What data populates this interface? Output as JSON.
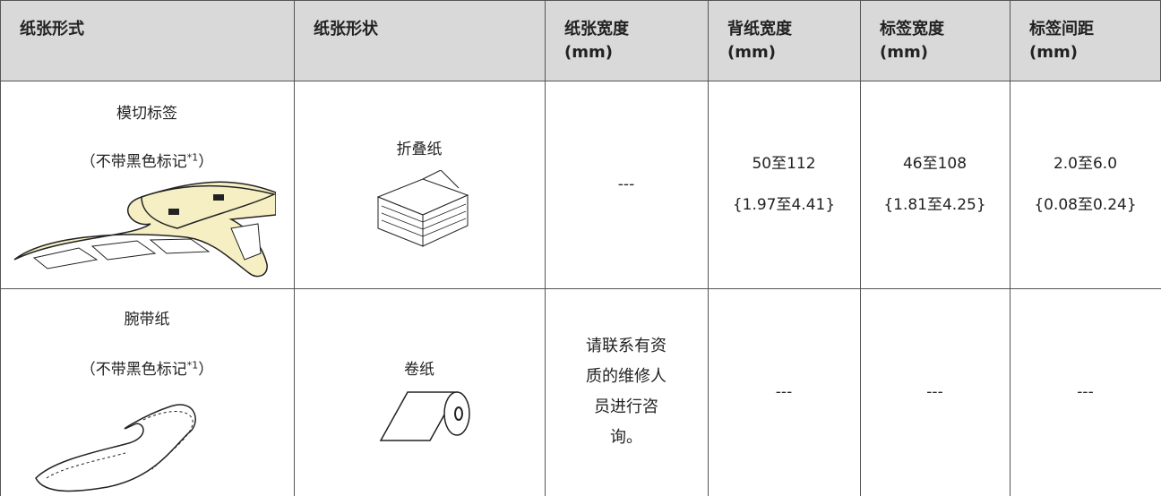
{
  "table": {
    "header": [
      [
        "纸张形式"
      ],
      [
        "纸张形状"
      ],
      [
        "纸张宽度",
        "(mm)"
      ],
      [
        "背纸宽度",
        "(mm)"
      ],
      [
        "标签宽度",
        "(mm)"
      ],
      [
        "标签间距",
        "(mm)"
      ]
    ],
    "rows": [
      {
        "type": "模切标签",
        "note": [
          "（不带黑色标记",
          "*1",
          "）"
        ],
        "shape": "折叠纸",
        "paper_width": [
          "---"
        ],
        "backing_width": [
          "50至112",
          "{1.97至4.41}"
        ],
        "label_width": [
          "46至108",
          "{1.81至4.25}"
        ],
        "label_gap": [
          "2.0至6.0",
          "{0.08至0.24}"
        ]
      },
      {
        "type": "腕带纸",
        "note": [
          "（不带黑色标记",
          "*1",
          "）"
        ],
        "shape": "卷纸",
        "paper_width": [
          "请联系有资质的维修人员进行咨询。"
        ],
        "backing_width": [
          "---"
        ],
        "label_width": [
          "---"
        ],
        "label_gap": [
          "---"
        ]
      }
    ]
  }
}
